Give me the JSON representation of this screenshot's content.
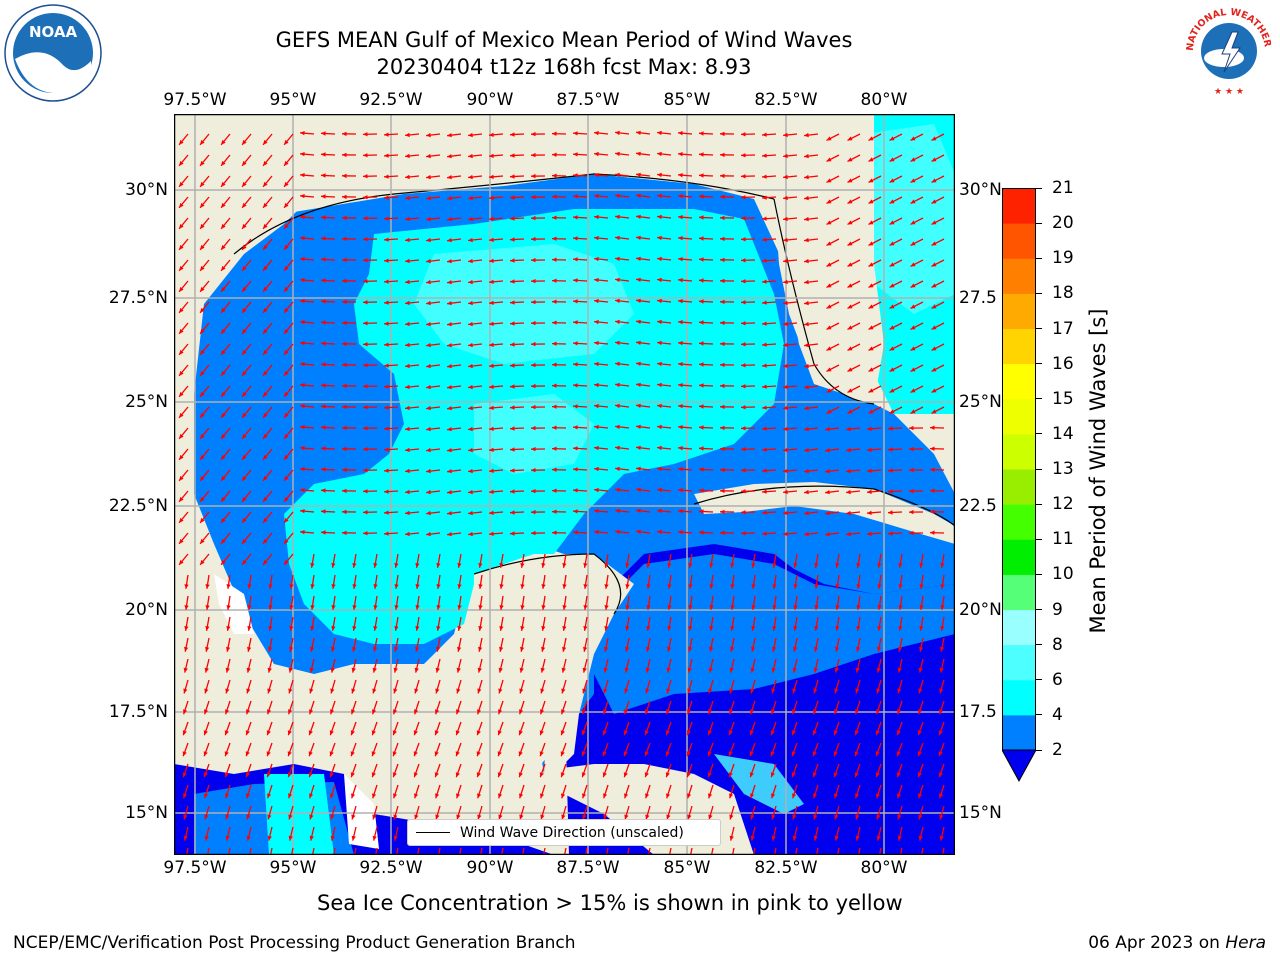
{
  "title": {
    "line1": "GEFS MEAN Gulf of Mexico Mean Period of Wind Waves",
    "line2": "20230404 t12z 168h fcst   Max: 8.93"
  },
  "map": {
    "lon_labels": [
      "97.5°W",
      "95°W",
      "92.5°W",
      "90°W",
      "87.5°W",
      "85°W",
      "82.5°W",
      "80°W"
    ],
    "lat_labels_left": [
      "30°N",
      "27.5°N",
      "25°N",
      "22.5°N",
      "20°N",
      "17.5°N",
      "15°N"
    ],
    "lat_labels_right": [
      "30°N",
      "27.5",
      "25°N",
      "22.5",
      "20°N",
      "17.5",
      "15°N"
    ],
    "legend_label": "Wind Wave Direction (unscaled)",
    "colors": {
      "land": "#efeddc",
      "band_2_4": "#0080ff",
      "band_4_6": "#00ffff",
      "band_6_8": "#4dffff",
      "below_2": "#0000ee",
      "arrow": "#ff0000"
    }
  },
  "colorbar": {
    "label": "Mean Period of Wind Waves [s]",
    "ticks": [
      "2",
      "4",
      "6",
      "8",
      "9",
      "10",
      "11",
      "12",
      "13",
      "14",
      "15",
      "16",
      "17",
      "18",
      "19",
      "20",
      "21"
    ],
    "colors": [
      "#0080ff",
      "#00ffff",
      "#4dffff",
      "#99ffff",
      "#55ff77",
      "#00ee00",
      "#44ff00",
      "#99ee00",
      "#ccff00",
      "#eeff00",
      "#ffff00",
      "#ffd400",
      "#ffaa00",
      "#ff8000",
      "#ff5500",
      "#ff2200",
      "#ff0000"
    ],
    "under_color": "#0000ee"
  },
  "note": "Sea Ice Concentration > 15% is shown in pink to yellow",
  "footer": {
    "left": "NCEP/EMC/Verification Post Processing Product Generation Branch",
    "date": "06 Apr 2023 on",
    "machine": "Hera"
  },
  "logos": {
    "noaa": "NOAA",
    "nws": "NATIONAL WEATHER SERVICE"
  }
}
